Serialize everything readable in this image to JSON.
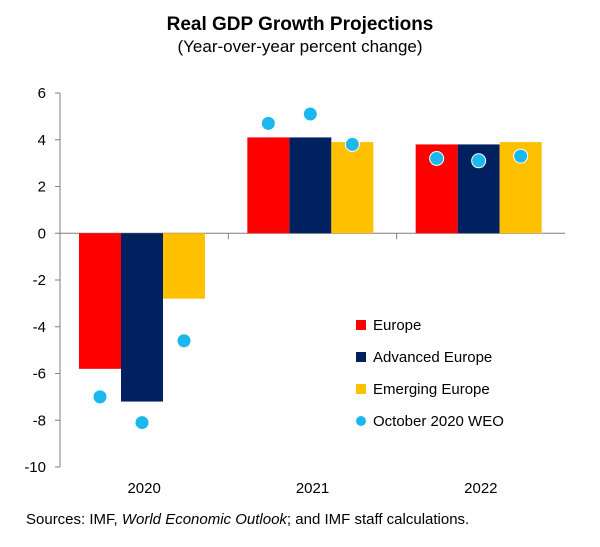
{
  "chart_data": {
    "type": "bar",
    "title": "Real GDP Growth Projections",
    "subtitle": "(Year-over-year percent change)",
    "categories": [
      "2020",
      "2021",
      "2022"
    ],
    "series": [
      {
        "name": "Europe",
        "color": "#ff0000",
        "values": [
          -5.8,
          4.1,
          3.8
        ]
      },
      {
        "name": "Advanced Europe",
        "color": "#002060",
        "values": [
          -7.2,
          4.1,
          3.8
        ]
      },
      {
        "name": "Emerging Europe",
        "color": "#ffc000",
        "values": [
          -2.8,
          3.9,
          3.9
        ]
      }
    ],
    "markers": {
      "name": "October 2020 WEO",
      "color": "#1ab8ec",
      "values": [
        [
          -7.0,
          -8.1,
          -4.6
        ],
        [
          4.7,
          5.1,
          3.8
        ],
        [
          3.2,
          3.1,
          3.3
        ]
      ]
    },
    "ylim": [
      -10,
      6
    ],
    "yticks": [
      "6",
      "4",
      "2",
      "0",
      "-2",
      "-4",
      "-6",
      "-8",
      "-10"
    ],
    "xlabel": "",
    "ylabel": "",
    "legend_position": "lower-right"
  },
  "source": {
    "prefix": "Sources: IMF, ",
    "italic": "World Economic Outlook",
    "suffix": "; and IMF staff calculations."
  }
}
